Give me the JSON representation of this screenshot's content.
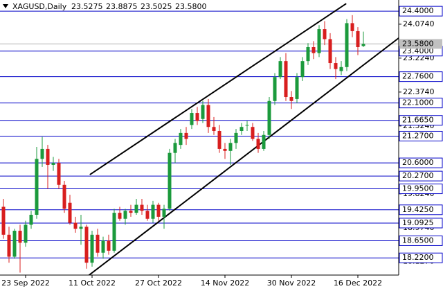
{
  "chart_data": {
    "type": "candlestick",
    "symbol": "XAGUSD,Daily",
    "ohlc_labels": [
      "23.5275",
      "23.8875",
      "23.5025",
      "23.5800"
    ],
    "categories": [
      null,
      null,
      null,
      null,
      "23 Sep 2022",
      null,
      null,
      null,
      null,
      null,
      null,
      null,
      null,
      null,
      null,
      null,
      "11 Oct 2022",
      null,
      null,
      null,
      null,
      null,
      null,
      null,
      null,
      null,
      null,
      null,
      "27 Oct 2022",
      null,
      null,
      null,
      null,
      null,
      null,
      null,
      null,
      null,
      null,
      null,
      "14 Nov 2022",
      null,
      null,
      null,
      null,
      null,
      null,
      null,
      null,
      null,
      null,
      null,
      "30 Nov 2022",
      null,
      null,
      null,
      null,
      null,
      null,
      null,
      null,
      null,
      null,
      null,
      "16 Dec 2022",
      null
    ],
    "open": [
      19.5,
      18.8,
      18.25,
      18.9,
      18.6,
      19.05,
      19.3,
      20.7,
      20.95,
      20.55,
      20.6,
      20.05,
      19.6,
      19.1,
      18.95,
      19.0,
      18.1,
      18.8,
      18.35,
      18.65,
      18.4,
      19.35,
      19.2,
      19.4,
      19.35,
      19.55,
      19.4,
      19.2,
      19.55,
      19.25,
      19.45,
      20.85,
      21.05,
      21.35,
      21.55,
      21.85,
      21.7,
      22.05,
      21.5,
      21.4,
      20.95,
      20.9,
      21.1,
      21.4,
      21.55,
      21.5,
      21.2,
      20.95,
      21.3,
      22.15,
      22.75,
      23.15,
      22.25,
      22.2,
      22.75,
      23.15,
      23.5,
      23.35,
      23.95,
      23.7,
      23.1,
      22.9,
      23.0,
      24.1,
      23.9,
      23.5275
    ],
    "high": [
      19.7,
      19.0,
      18.95,
      19.05,
      19.15,
      19.4,
      21.0,
      21.25,
      21.05,
      20.75,
      20.7,
      20.15,
      19.8,
      19.25,
      19.3,
      19.05,
      18.9,
      18.95,
      18.75,
      18.8,
      19.45,
      19.5,
      19.45,
      19.55,
      19.7,
      19.7,
      19.55,
      19.65,
      19.6,
      19.55,
      20.95,
      21.2,
      21.45,
      21.5,
      21.95,
      22.0,
      22.15,
      22.2,
      21.75,
      21.55,
      21.1,
      21.2,
      21.45,
      21.6,
      21.65,
      21.6,
      21.35,
      21.4,
      22.25,
      22.85,
      23.25,
      23.35,
      22.4,
      22.85,
      23.25,
      23.6,
      23.65,
      24.05,
      24.15,
      23.85,
      23.25,
      23.15,
      24.2,
      24.3,
      24.0,
      23.8875
    ],
    "low": [
      18.7,
      18.1,
      18.2,
      17.85,
      18.5,
      18.95,
      19.2,
      20.5,
      19.95,
      20.4,
      19.95,
      19.35,
      19.05,
      18.85,
      18.55,
      17.95,
      18.0,
      18.25,
      18.2,
      18.3,
      18.35,
      19.15,
      19.05,
      19.25,
      19.3,
      19.3,
      19.15,
      19.1,
      19.15,
      18.95,
      19.4,
      20.6,
      20.95,
      21.05,
      21.45,
      21.55,
      21.6,
      21.35,
      21.3,
      20.85,
      20.7,
      20.55,
      20.95,
      21.3,
      21.4,
      21.15,
      20.85,
      20.9,
      21.2,
      22.05,
      22.7,
      22.15,
      21.95,
      22.1,
      22.65,
      23.05,
      23.2,
      23.25,
      23.55,
      22.95,
      22.7,
      22.8,
      22.9,
      23.75,
      23.3,
      23.5025
    ],
    "close": [
      18.8,
      18.25,
      18.9,
      18.6,
      19.05,
      19.3,
      20.7,
      20.95,
      20.55,
      20.6,
      20.05,
      19.45,
      19.1,
      18.95,
      19.0,
      18.1,
      18.8,
      18.35,
      18.65,
      18.4,
      19.35,
      19.2,
      19.4,
      19.35,
      19.55,
      19.4,
      19.2,
      19.55,
      19.25,
      19.45,
      20.85,
      21.1,
      21.35,
      21.2,
      21.85,
      21.65,
      22.05,
      21.5,
      21.4,
      20.95,
      20.9,
      21.1,
      21.35,
      21.5,
      21.55,
      21.2,
      20.95,
      21.3,
      22.15,
      22.75,
      23.15,
      22.25,
      22.15,
      22.75,
      23.15,
      23.5,
      23.35,
      23.95,
      23.7,
      23.1,
      22.95,
      23.0,
      24.1,
      23.9,
      23.5,
      23.58
    ],
    "up_color": "#1b9a3c",
    "down_color": "#d81e1e",
    "ylim": [
      17.79,
      24.68
    ],
    "yticks": [
      {
        "value": 24.074,
        "label": "24.0740"
      },
      {
        "value": 23.224,
        "label": "23.2240"
      },
      {
        "value": 22.374,
        "label": "22.3740"
      },
      {
        "value": 21.524,
        "label": "21.5240"
      },
      {
        "value": 19.824,
        "label": "19.8240"
      },
      {
        "value": 18.974,
        "label": "18.9740"
      },
      {
        "value": 18.127,
        "label": "18.1270"
      }
    ],
    "levels": [
      {
        "value": 24.4,
        "label": "24.4000"
      },
      {
        "value": 23.4,
        "label": "23.4000"
      },
      {
        "value": 22.76,
        "label": "22.7600"
      },
      {
        "value": 22.1,
        "label": "22.1000"
      },
      {
        "value": 21.665,
        "label": "21.6650"
      },
      {
        "value": 21.27,
        "label": "21.2700"
      },
      {
        "value": 20.6,
        "label": "20.6000"
      },
      {
        "value": 20.27,
        "label": "20.2700"
      },
      {
        "value": 19.95,
        "label": "19.9500"
      },
      {
        "value": 19.425,
        "label": "19.4250"
      },
      {
        "value": 19.0925,
        "label": "19.0925"
      },
      {
        "value": 18.65,
        "label": "18.6500"
      },
      {
        "value": 18.22,
        "label": "18.2200"
      }
    ],
    "level_color": "#0000c8",
    "current_price": {
      "value": 23.58,
      "label": "23.5800"
    },
    "trendlines": [
      {
        "points": [
          [
            15.6,
            20.305
          ],
          [
            61.9,
            24.59
          ]
        ]
      },
      {
        "points": [
          [
            15,
            17.74
          ],
          [
            71.4,
            23.73
          ]
        ]
      }
    ]
  }
}
